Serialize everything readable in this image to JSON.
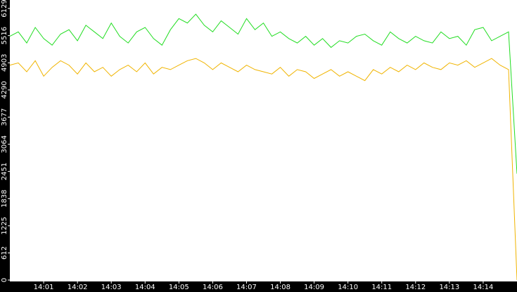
{
  "chart_data": {
    "type": "line",
    "x": [
      "14:00:00",
      "14:00:15",
      "14:00:30",
      "14:00:45",
      "14:01:00",
      "14:01:15",
      "14:01:30",
      "14:01:45",
      "14:02:00",
      "14:02:15",
      "14:02:30",
      "14:02:45",
      "14:03:00",
      "14:03:15",
      "14:03:30",
      "14:03:45",
      "14:04:00",
      "14:04:15",
      "14:04:30",
      "14:04:45",
      "14:05:00",
      "14:05:15",
      "14:05:30",
      "14:05:45",
      "14:06:00",
      "14:06:15",
      "14:06:30",
      "14:06:45",
      "14:07:00",
      "14:07:15",
      "14:07:30",
      "14:07:45",
      "14:08:00",
      "14:08:15",
      "14:08:30",
      "14:08:45",
      "14:09:00",
      "14:09:15",
      "14:09:30",
      "14:09:45",
      "14:10:00",
      "14:10:15",
      "14:10:30",
      "14:10:45",
      "14:11:00",
      "14:11:15",
      "14:11:30",
      "14:11:45",
      "14:12:00",
      "14:12:15",
      "14:12:30",
      "14:12:45",
      "14:13:00",
      "14:13:15",
      "14:13:30",
      "14:13:45",
      "14:14:00",
      "14:14:15",
      "14:14:30",
      "14:14:45",
      "14:15:00"
    ],
    "series": [
      {
        "color": "#22dd22",
        "values": [
          5500,
          5600,
          5350,
          5700,
          5450,
          5300,
          5550,
          5650,
          5400,
          5750,
          5600,
          5450,
          5800,
          5500,
          5350,
          5600,
          5700,
          5450,
          5300,
          5650,
          5900,
          5800,
          6000,
          5750,
          5600,
          5850,
          5700,
          5550,
          5900,
          5650,
          5800,
          5500,
          5600,
          5450,
          5350,
          5500,
          5300,
          5450,
          5250,
          5400,
          5350,
          5500,
          5550,
          5400,
          5300,
          5600,
          5450,
          5350,
          5500,
          5400,
          5350,
          5600,
          5450,
          5500,
          5300,
          5650,
          5700,
          5400,
          5500,
          5600,
          2400
        ]
      },
      {
        "color": "#f0b400",
        "values": [
          4850,
          4900,
          4700,
          4950,
          4600,
          4800,
          4950,
          4850,
          4650,
          4900,
          4700,
          4800,
          4600,
          4750,
          4850,
          4700,
          4900,
          4650,
          4800,
          4750,
          4850,
          4950,
          5000,
          4900,
          4750,
          4900,
          4800,
          4700,
          4850,
          4750,
          4700,
          4650,
          4800,
          4600,
          4750,
          4700,
          4550,
          4650,
          4750,
          4600,
          4700,
          4600,
          4500,
          4750,
          4650,
          4800,
          4700,
          4850,
          4750,
          4900,
          4800,
          4750,
          4900,
          4850,
          4950,
          4800,
          4900,
          5000,
          4850,
          4750,
          0
        ]
      }
    ],
    "xlim": [
      "14:00:00",
      "14:15:00"
    ],
    "xticks": [
      "14:01",
      "14:02",
      "14:03",
      "14:04",
      "14:05",
      "14:06",
      "14:07",
      "14:08",
      "14:09",
      "14:10",
      "14:11",
      "14:12",
      "14:13",
      "14:14"
    ],
    "ylim": [
      0,
      6320
    ],
    "yticks": [
      0,
      612,
      1225,
      1838,
      2451,
      3064,
      3677,
      4290,
      4903,
      5516,
      6129
    ]
  }
}
